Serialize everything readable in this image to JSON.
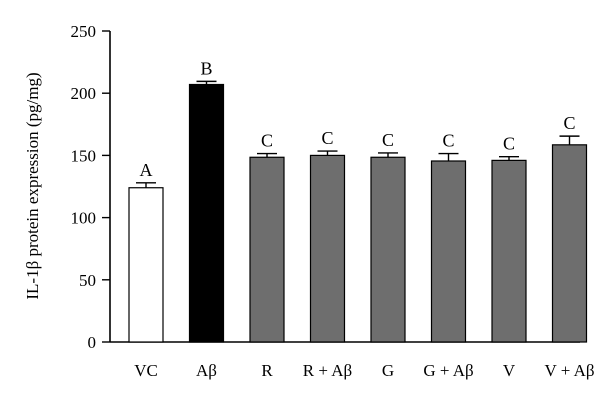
{
  "chart_data": {
    "type": "bar",
    "ylabel": "IL-1β protein expression (pg/mg)",
    "xlabel": "",
    "ylim": [
      0,
      250
    ],
    "yticks": [
      0,
      50,
      100,
      150,
      200,
      250
    ],
    "grid": false,
    "categories": [
      "VC",
      "Aβ",
      "R",
      "R + Aβ",
      "G",
      "G + Aβ",
      "V",
      "V + Aβ"
    ],
    "values": [
      124,
      207,
      148.5,
      150,
      148.5,
      145.5,
      146,
      158.5
    ],
    "errors": [
      4,
      2.5,
      3,
      3.5,
      3.5,
      6,
      3,
      7
    ],
    "significance_letters": [
      "A",
      "B",
      "C",
      "C",
      "C",
      "C",
      "C",
      "C"
    ],
    "colors": {
      "VC": "#ffffff",
      "Aβ": "#000000",
      "treatment": "#6e6e6e"
    },
    "bar_colors": [
      "#ffffff",
      "#000000",
      "#6e6e6e",
      "#6e6e6e",
      "#6e6e6e",
      "#6e6e6e",
      "#6e6e6e",
      "#6e6e6e"
    ]
  }
}
